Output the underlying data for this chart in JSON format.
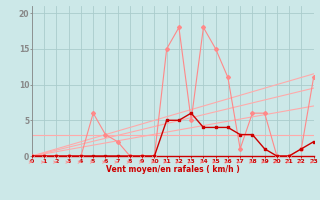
{
  "x": [
    0,
    1,
    2,
    3,
    4,
    5,
    6,
    7,
    8,
    9,
    10,
    11,
    12,
    13,
    14,
    15,
    16,
    17,
    18,
    19,
    20,
    21,
    22,
    23
  ],
  "rafales": [
    0,
    0,
    0,
    0,
    0,
    6,
    3,
    2,
    0,
    0,
    0,
    15,
    18,
    5,
    18,
    15,
    11,
    1,
    6,
    6,
    0,
    0,
    1,
    11
  ],
  "vent_moyen": [
    0,
    0,
    0,
    0,
    0,
    0,
    0,
    0,
    0,
    0,
    0,
    5,
    5,
    6,
    4,
    4,
    4,
    3,
    3,
    1,
    0,
    0,
    1,
    2
  ],
  "trend_flat_y": 3.0,
  "trend2_x": [
    0,
    23
  ],
  "trend2_y": [
    0.0,
    11.5
  ],
  "trend3_x": [
    0,
    23
  ],
  "trend3_y": [
    0.0,
    9.5
  ],
  "trend4_x": [
    0,
    23
  ],
  "trend4_y": [
    0.0,
    7.0
  ],
  "xlabel": "Vent moyen/en rafales ( km/h )",
  "ylim": [
    0,
    21
  ],
  "xlim": [
    0,
    23
  ],
  "bg_color": "#cce8e8",
  "grid_color": "#aacccc",
  "color_rafales": "#ff8888",
  "color_vent": "#cc0000",
  "color_trend": "#ffaaaa",
  "color_axis": "#cc0000",
  "yticks": [
    0,
    5,
    10,
    15,
    20
  ],
  "xticks": [
    0,
    1,
    2,
    3,
    4,
    5,
    6,
    7,
    8,
    9,
    10,
    11,
    12,
    13,
    14,
    15,
    16,
    17,
    18,
    19,
    20,
    21,
    22,
    23
  ]
}
